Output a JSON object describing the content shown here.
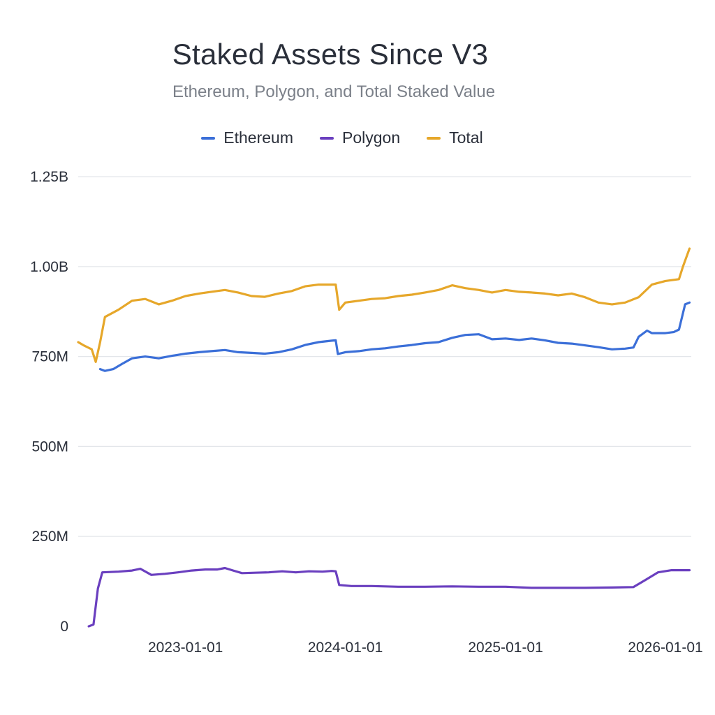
{
  "chart_data": {
    "type": "line",
    "title": "Staked Assets Since V3",
    "subtitle": "Ethereum, Polygon, and Total Staked Value",
    "xlabel": "",
    "ylabel": "",
    "legend_position": "top-center",
    "grid": true,
    "x_domain": [
      "2022-05-01",
      "2026-03-01"
    ],
    "y_domain": [
      0,
      1250000000
    ],
    "y_ticks": [
      {
        "value": 0,
        "label": "0"
      },
      {
        "value": 250000000,
        "label": "250M"
      },
      {
        "value": 500000000,
        "label": "500M"
      },
      {
        "value": 750000000,
        "label": "750M"
      },
      {
        "value": 1000000000,
        "label": "1.00B"
      },
      {
        "value": 1250000000,
        "label": "1.25B"
      }
    ],
    "x_ticks": [
      {
        "value": "2023-01-01",
        "label": "2023-01-01"
      },
      {
        "value": "2024-01-01",
        "label": "2024-01-01"
      },
      {
        "value": "2025-01-01",
        "label": "2025-01-01"
      },
      {
        "value": "2026-01-01",
        "label": "2026-01-01"
      }
    ],
    "series": [
      {
        "name": "Ethereum",
        "color": "#3b6fd8",
        "points": [
          [
            "2022-06-20",
            715000000
          ],
          [
            "2022-07-01",
            710000000
          ],
          [
            "2022-07-20",
            715000000
          ],
          [
            "2022-08-10",
            730000000
          ],
          [
            "2022-09-01",
            745000000
          ],
          [
            "2022-10-01",
            750000000
          ],
          [
            "2022-11-01",
            745000000
          ],
          [
            "2022-12-01",
            752000000
          ],
          [
            "2023-01-01",
            758000000
          ],
          [
            "2023-02-01",
            762000000
          ],
          [
            "2023-03-01",
            765000000
          ],
          [
            "2023-04-01",
            768000000
          ],
          [
            "2023-05-01",
            762000000
          ],
          [
            "2023-06-01",
            760000000
          ],
          [
            "2023-07-01",
            758000000
          ],
          [
            "2023-08-01",
            762000000
          ],
          [
            "2023-09-01",
            770000000
          ],
          [
            "2023-10-01",
            782000000
          ],
          [
            "2023-11-01",
            790000000
          ],
          [
            "2023-12-01",
            794000000
          ],
          [
            "2023-12-10",
            795000000
          ],
          [
            "2023-12-15",
            757000000
          ],
          [
            "2024-01-01",
            762000000
          ],
          [
            "2024-02-01",
            765000000
          ],
          [
            "2024-03-01",
            770000000
          ],
          [
            "2024-04-01",
            773000000
          ],
          [
            "2024-05-01",
            778000000
          ],
          [
            "2024-06-01",
            782000000
          ],
          [
            "2024-07-01",
            787000000
          ],
          [
            "2024-08-01",
            790000000
          ],
          [
            "2024-09-01",
            802000000
          ],
          [
            "2024-10-01",
            810000000
          ],
          [
            "2024-11-01",
            812000000
          ],
          [
            "2024-12-01",
            798000000
          ],
          [
            "2025-01-01",
            800000000
          ],
          [
            "2025-02-01",
            796000000
          ],
          [
            "2025-03-01",
            800000000
          ],
          [
            "2025-04-01",
            795000000
          ],
          [
            "2025-05-01",
            788000000
          ],
          [
            "2025-06-01",
            786000000
          ],
          [
            "2025-07-01",
            781000000
          ],
          [
            "2025-08-01",
            776000000
          ],
          [
            "2025-09-01",
            770000000
          ],
          [
            "2025-10-01",
            772000000
          ],
          [
            "2025-10-20",
            775000000
          ],
          [
            "2025-11-01",
            805000000
          ],
          [
            "2025-11-20",
            822000000
          ],
          [
            "2025-12-01",
            815000000
          ],
          [
            "2026-01-01",
            815000000
          ],
          [
            "2026-01-20",
            818000000
          ],
          [
            "2026-02-01",
            825000000
          ],
          [
            "2026-02-15",
            895000000
          ],
          [
            "2026-02-25",
            900000000
          ]
        ]
      },
      {
        "name": "Polygon",
        "color": "#6a3fbf",
        "points": [
          [
            "2022-05-25",
            0
          ],
          [
            "2022-06-05",
            5000000
          ],
          [
            "2022-06-15",
            105000000
          ],
          [
            "2022-06-25",
            150000000
          ],
          [
            "2022-08-01",
            152000000
          ],
          [
            "2022-09-01",
            155000000
          ],
          [
            "2022-09-20",
            160000000
          ],
          [
            "2022-10-15",
            143000000
          ],
          [
            "2022-11-15",
            146000000
          ],
          [
            "2022-12-15",
            150000000
          ],
          [
            "2023-01-15",
            155000000
          ],
          [
            "2023-02-15",
            158000000
          ],
          [
            "2023-03-15",
            158000000
          ],
          [
            "2023-04-01",
            162000000
          ],
          [
            "2023-04-20",
            155000000
          ],
          [
            "2023-05-10",
            148000000
          ],
          [
            "2023-06-10",
            149000000
          ],
          [
            "2023-07-10",
            150000000
          ],
          [
            "2023-08-10",
            153000000
          ],
          [
            "2023-09-10",
            150000000
          ],
          [
            "2023-10-10",
            153000000
          ],
          [
            "2023-11-10",
            152000000
          ],
          [
            "2023-12-01",
            154000000
          ],
          [
            "2023-12-10",
            153000000
          ],
          [
            "2023-12-18",
            115000000
          ],
          [
            "2024-01-15",
            112000000
          ],
          [
            "2024-03-01",
            112000000
          ],
          [
            "2024-05-01",
            110000000
          ],
          [
            "2024-07-01",
            110000000
          ],
          [
            "2024-09-01",
            111000000
          ],
          [
            "2024-11-01",
            110000000
          ],
          [
            "2025-01-01",
            110000000
          ],
          [
            "2025-03-01",
            107000000
          ],
          [
            "2025-05-01",
            107000000
          ],
          [
            "2025-07-01",
            107000000
          ],
          [
            "2025-09-01",
            108000000
          ],
          [
            "2025-10-20",
            109000000
          ],
          [
            "2025-11-15",
            128000000
          ],
          [
            "2025-12-15",
            150000000
          ],
          [
            "2026-01-15",
            156000000
          ],
          [
            "2026-02-25",
            156000000
          ]
        ]
      },
      {
        "name": "Total",
        "color": "#e6a72a",
        "points": [
          [
            "2022-05-01",
            790000000
          ],
          [
            "2022-05-15",
            780000000
          ],
          [
            "2022-06-01",
            770000000
          ],
          [
            "2022-06-10",
            735000000
          ],
          [
            "2022-06-20",
            790000000
          ],
          [
            "2022-07-01",
            860000000
          ],
          [
            "2022-08-01",
            880000000
          ],
          [
            "2022-09-01",
            905000000
          ],
          [
            "2022-10-01",
            910000000
          ],
          [
            "2022-11-01",
            895000000
          ],
          [
            "2022-12-01",
            905000000
          ],
          [
            "2023-01-01",
            918000000
          ],
          [
            "2023-02-01",
            925000000
          ],
          [
            "2023-03-01",
            930000000
          ],
          [
            "2023-04-01",
            935000000
          ],
          [
            "2023-05-01",
            928000000
          ],
          [
            "2023-06-01",
            918000000
          ],
          [
            "2023-07-01",
            916000000
          ],
          [
            "2023-08-01",
            925000000
          ],
          [
            "2023-09-01",
            932000000
          ],
          [
            "2023-10-01",
            945000000
          ],
          [
            "2023-11-01",
            950000000
          ],
          [
            "2023-12-10",
            950000000
          ],
          [
            "2023-12-18",
            880000000
          ],
          [
            "2024-01-01",
            900000000
          ],
          [
            "2024-02-01",
            905000000
          ],
          [
            "2024-03-01",
            910000000
          ],
          [
            "2024-04-01",
            912000000
          ],
          [
            "2024-05-01",
            918000000
          ],
          [
            "2024-06-01",
            922000000
          ],
          [
            "2024-07-01",
            928000000
          ],
          [
            "2024-08-01",
            935000000
          ],
          [
            "2024-09-01",
            948000000
          ],
          [
            "2024-10-01",
            940000000
          ],
          [
            "2024-11-01",
            935000000
          ],
          [
            "2024-12-01",
            928000000
          ],
          [
            "2025-01-01",
            935000000
          ],
          [
            "2025-02-01",
            930000000
          ],
          [
            "2025-03-01",
            928000000
          ],
          [
            "2025-04-01",
            925000000
          ],
          [
            "2025-05-01",
            920000000
          ],
          [
            "2025-06-01",
            925000000
          ],
          [
            "2025-07-01",
            915000000
          ],
          [
            "2025-08-01",
            900000000
          ],
          [
            "2025-09-01",
            895000000
          ],
          [
            "2025-10-01",
            900000000
          ],
          [
            "2025-11-01",
            915000000
          ],
          [
            "2025-12-01",
            950000000
          ],
          [
            "2026-01-01",
            960000000
          ],
          [
            "2026-02-01",
            965000000
          ],
          [
            "2026-02-10",
            1000000000
          ],
          [
            "2026-02-25",
            1050000000
          ]
        ]
      }
    ]
  }
}
